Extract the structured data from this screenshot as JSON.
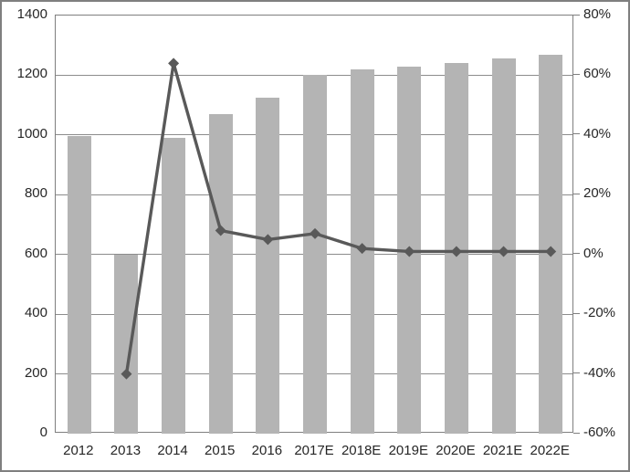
{
  "frame": {
    "background": "#ffffff",
    "border_color": "#7f7f7f"
  },
  "chart_data": {
    "type": "bar",
    "subtype": "combo-bar-line",
    "title": "",
    "xlabel": "",
    "ylabel": "",
    "legend": "none",
    "grid": true,
    "categories": [
      "2012",
      "2013",
      "2014",
      "2015",
      "2016",
      "2017E",
      "2018E",
      "2019E",
      "2020E",
      "2021E",
      "2022E"
    ],
    "series": [
      {
        "name": "bar-series-left-axis",
        "type": "bar",
        "axis": "left",
        "color": "#b4b4b4",
        "values": [
          995,
          600,
          990,
          1070,
          1125,
          1200,
          1220,
          1230,
          1240,
          1255,
          1270
        ]
      },
      {
        "name": "line-series-right-axis",
        "type": "line",
        "axis": "right",
        "color": "#595959",
        "marker": "diamond",
        "values": [
          null,
          -40,
          64,
          8,
          5,
          7,
          2,
          1,
          1,
          1,
          1
        ]
      }
    ],
    "left_axis": {
      "min": 0,
      "max": 1400,
      "step": 200,
      "tick_labels": [
        "0",
        "200",
        "400",
        "600",
        "800",
        "1000",
        "1200",
        "1400"
      ]
    },
    "right_axis": {
      "min": -60,
      "max": 80,
      "step": 20,
      "tick_labels": [
        "-60%",
        "-40%",
        "-20%",
        "0%",
        "20%",
        "40%",
        "60%",
        "80%"
      ]
    },
    "colors": {
      "gridline": "#8c8c8c",
      "axis": "#7f7f7f",
      "text": "#262626",
      "bar_fill": "#b4b4b4",
      "line_stroke": "#595959"
    }
  }
}
